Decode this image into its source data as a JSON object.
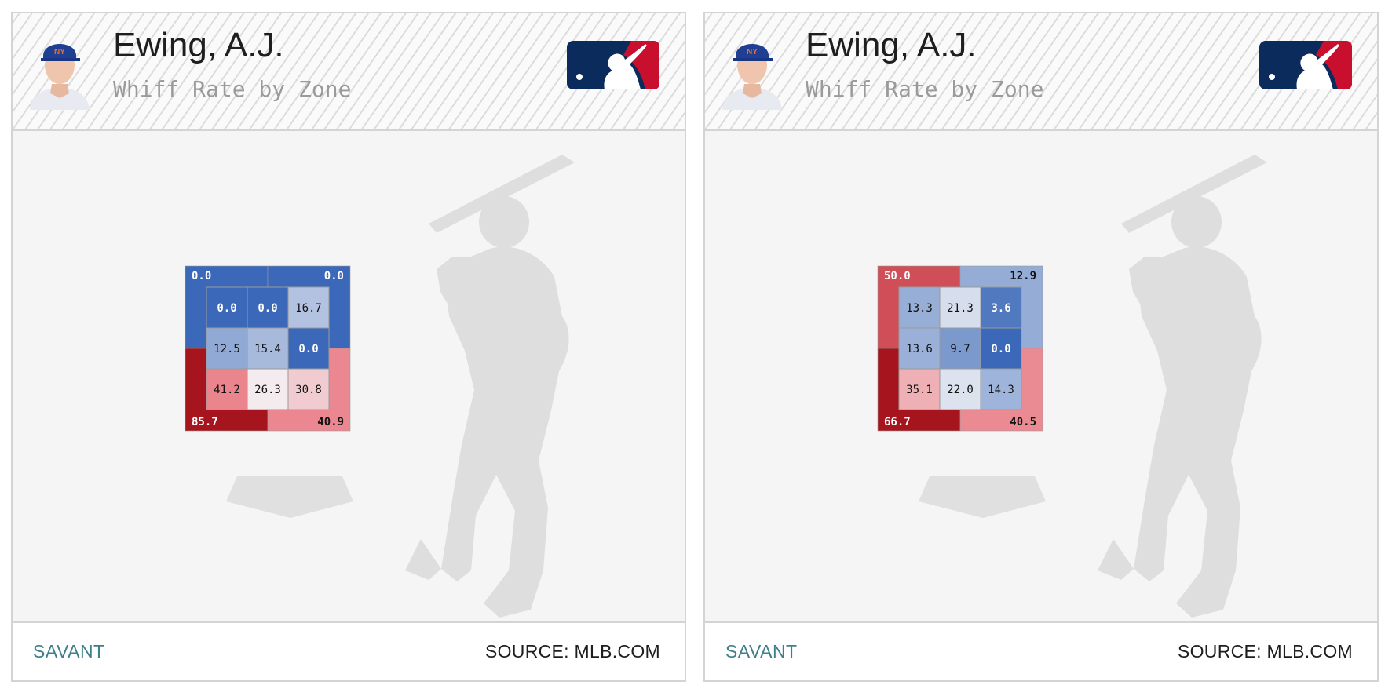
{
  "cards": [
    {
      "player_name": "Ewing, A.J.",
      "subtitle": "Whiff Rate by Zone",
      "footer": {
        "left_link": "SAVANT",
        "right_text": "SOURCE: MLB.COM"
      }
    },
    {
      "player_name": "Ewing, A.J.",
      "subtitle": "Whiff Rate by Zone",
      "footer": {
        "left_link": "SAVANT",
        "right_text": "SOURCE: MLB.COM"
      }
    }
  ],
  "icons": {
    "avatar": "player-headshot-icon",
    "logo": "mlb-logo-icon",
    "batter": "batter-silhouette-icon",
    "plate": "home-plate-icon"
  },
  "colors": {
    "blue_dark": "#3b68b8",
    "red_dark": "#a6141e",
    "red_bright": "#d6141e",
    "teal": "#3f7f8a"
  },
  "chart_data": [
    {
      "type": "heatmap",
      "title": "Whiff Rate by Zone",
      "inner_grid": [
        [
          0.0,
          0.0,
          16.7
        ],
        [
          12.5,
          15.4,
          0.0
        ],
        [
          41.2,
          26.3,
          30.8
        ]
      ],
      "outer": {
        "top_left": 0.0,
        "top_right": 0.0,
        "bottom_left": 85.7,
        "bottom_right": 40.9
      },
      "labels": {
        "inner": [
          [
            "0.0",
            "0.0",
            "16.7"
          ],
          [
            "12.5",
            "15.4",
            "0.0"
          ],
          [
            "41.2",
            "26.3",
            "30.8"
          ]
        ],
        "outer": {
          "top_left": "0.0",
          "top_right": "0.0",
          "bottom_left": "85.7",
          "bottom_right": "40.9"
        }
      }
    },
    {
      "type": "heatmap",
      "title": "Whiff Rate by Zone",
      "inner_grid": [
        [
          13.3,
          21.3,
          3.6
        ],
        [
          13.6,
          9.7,
          0.0
        ],
        [
          35.1,
          22.0,
          14.3
        ]
      ],
      "outer": {
        "top_left": 50.0,
        "top_right": 12.9,
        "bottom_left": 66.7,
        "bottom_right": 40.5
      },
      "labels": {
        "inner": [
          [
            "13.3",
            "21.3",
            "3.6"
          ],
          [
            "13.6",
            "9.7",
            "0.0"
          ],
          [
            "35.1",
            "22.0",
            "14.3"
          ]
        ],
        "outer": {
          "top_left": "50.0",
          "top_right": "12.9",
          "bottom_left": "66.7",
          "bottom_right": "40.5"
        }
      }
    }
  ]
}
